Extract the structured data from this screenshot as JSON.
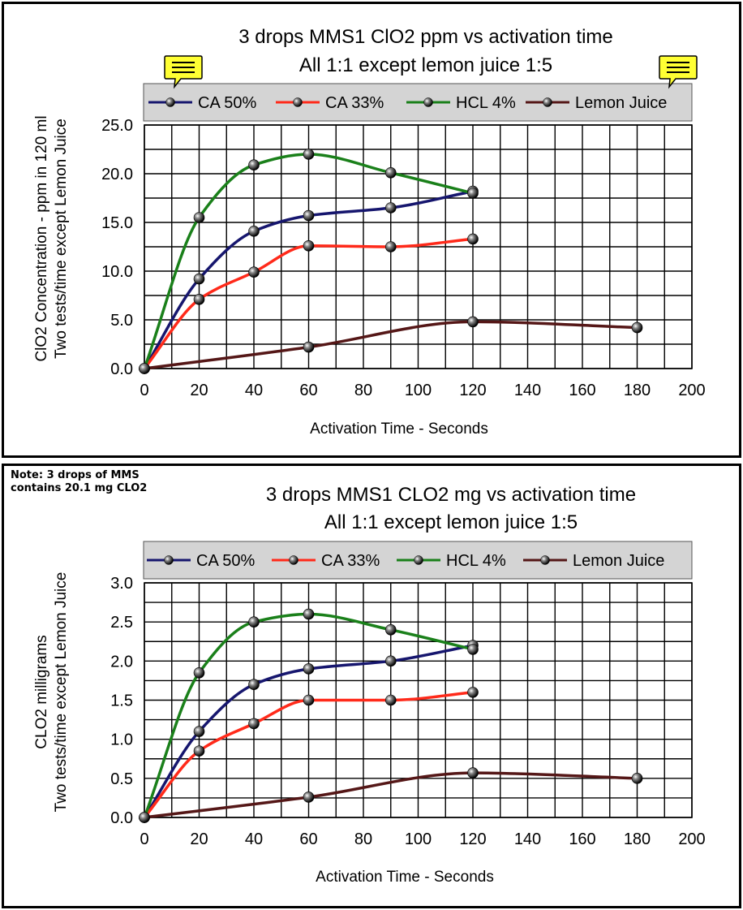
{
  "chart_data": [
    {
      "type": "line",
      "title": "3 drops MMS1 ClO2 ppm vs activation time",
      "subtitle": "All 1:1 except lemon juice 1:5",
      "xlabel": "Activation Time - Seconds",
      "ylabel": [
        "ClO2 Concentration - ppm in 120 ml",
        "Two tests/time except Lemon Juice"
      ],
      "xlim": [
        0,
        200
      ],
      "ylim": [
        0,
        25
      ],
      "xticks": [
        "0",
        "20",
        "40",
        "60",
        "80",
        "100",
        "120",
        "140",
        "160",
        "180",
        "200"
      ],
      "yticks": [
        "0.0",
        "5.0",
        "10.0",
        "15.0",
        "20.0",
        "25.0"
      ],
      "xtick_values": [
        0,
        20,
        40,
        60,
        80,
        100,
        120,
        140,
        160,
        180,
        200
      ],
      "ytick_values": [
        0,
        5,
        10,
        15,
        20,
        25
      ],
      "x_minor_step": 10,
      "y_minor_step": 2.5,
      "grid": true,
      "legend_position": "top",
      "comment_icons": true,
      "series": [
        {
          "name": "CA 50%",
          "color": "#16166e",
          "x": [
            0,
            20,
            40,
            60,
            90,
            120
          ],
          "values": [
            0,
            9.2,
            14.1,
            15.7,
            16.5,
            18.2
          ]
        },
        {
          "name": "CA 33%",
          "color": "#ff2a1a",
          "x": [
            0,
            20,
            40,
            60,
            90,
            120
          ],
          "values": [
            0,
            7.1,
            9.9,
            12.6,
            12.5,
            13.3
          ]
        },
        {
          "name": "HCL 4%",
          "color": "#1a801a",
          "x": [
            0,
            20,
            40,
            60,
            90,
            120
          ],
          "values": [
            0,
            15.5,
            20.9,
            22.0,
            20.1,
            18.0
          ]
        },
        {
          "name": "Lemon Juice",
          "color": "#551717",
          "x": [
            0,
            60,
            120,
            180
          ],
          "values": [
            0,
            2.2,
            4.8,
            4.2
          ]
        }
      ]
    },
    {
      "type": "line",
      "title": "3 drops MMS1 CLO2 mg vs activation time",
      "subtitle": "All 1:1 except lemon juice 1:5",
      "note": [
        "Note: 3 drops of MMS",
        "contains 20.1 mg CLO2"
      ],
      "xlabel": "Activation Time - Seconds",
      "ylabel": [
        "CLO2 milligrams",
        "Two tests/time except Lemon Juice"
      ],
      "xlim": [
        0,
        200
      ],
      "ylim": [
        0,
        3
      ],
      "xticks": [
        "0",
        "20",
        "40",
        "60",
        "80",
        "100",
        "120",
        "140",
        "160",
        "180",
        "200"
      ],
      "yticks": [
        "0.0",
        "0.5",
        "1.0",
        "1.5",
        "2.0",
        "2.5",
        "3.0"
      ],
      "xtick_values": [
        0,
        20,
        40,
        60,
        80,
        100,
        120,
        140,
        160,
        180,
        200
      ],
      "ytick_values": [
        0,
        0.5,
        1,
        1.5,
        2,
        2.5,
        3
      ],
      "x_minor_step": 10,
      "y_minor_step": 0.25,
      "grid": true,
      "legend_position": "top",
      "comment_icons": false,
      "series": [
        {
          "name": "CA 50%",
          "color": "#16166e",
          "x": [
            0,
            20,
            40,
            60,
            90,
            120
          ],
          "values": [
            0,
            1.1,
            1.7,
            1.9,
            2.0,
            2.2
          ]
        },
        {
          "name": "CA 33%",
          "color": "#ff2a1a",
          "x": [
            0,
            20,
            40,
            60,
            90,
            120
          ],
          "values": [
            0,
            0.85,
            1.2,
            1.5,
            1.5,
            1.6
          ]
        },
        {
          "name": "HCL 4%",
          "color": "#1a801a",
          "x": [
            0,
            20,
            40,
            60,
            90,
            120
          ],
          "values": [
            0,
            1.85,
            2.5,
            2.6,
            2.4,
            2.15
          ]
        },
        {
          "name": "Lemon Juice",
          "color": "#551717",
          "x": [
            0,
            60,
            120,
            180
          ],
          "values": [
            0,
            0.26,
            0.57,
            0.5
          ]
        }
      ]
    }
  ]
}
